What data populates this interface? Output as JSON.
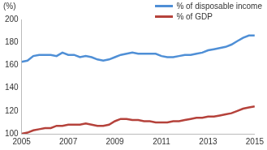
{
  "chart_data": {
    "type": "line",
    "ylabel": "(%)",
    "x": [
      2005,
      2005.25,
      2005.5,
      2005.75,
      2006,
      2006.25,
      2006.5,
      2006.75,
      2007,
      2007.25,
      2007.5,
      2007.75,
      2008,
      2008.25,
      2008.5,
      2008.75,
      2009,
      2009.25,
      2009.5,
      2009.75,
      2010,
      2010.25,
      2010.5,
      2010.75,
      2011,
      2011.25,
      2011.5,
      2011.75,
      2012,
      2012.25,
      2012.5,
      2012.75,
      2013,
      2013.25,
      2013.5,
      2013.75,
      2014,
      2014.25,
      2014.5,
      2014.75,
      2015
    ],
    "series": [
      {
        "name": "% of disposable income",
        "color": "#4f8fd6",
        "values": [
          163,
          164,
          168,
          169,
          169,
          169,
          168,
          171,
          169,
          169,
          167,
          168,
          167,
          165,
          164,
          165,
          167,
          169,
          170,
          171,
          170,
          170,
          170,
          170,
          168,
          167,
          167,
          168,
          169,
          169,
          170,
          171,
          173,
          174,
          175,
          176,
          178,
          181,
          184,
          186,
          186
        ]
      },
      {
        "name": "% of GDP",
        "color": "#b5423b",
        "values": [
          100,
          101,
          103,
          104,
          105,
          105,
          107,
          107,
          108,
          108,
          108,
          109,
          108,
          107,
          107,
          108,
          111,
          113,
          113,
          112,
          112,
          111,
          111,
          110,
          110,
          110,
          111,
          111,
          112,
          113,
          114,
          114,
          115,
          115,
          116,
          117,
          118,
          120,
          122,
          123,
          124
        ]
      }
    ],
    "xlim": [
      2005,
      2015
    ],
    "xticks": [
      2005,
      2007,
      2009,
      2011,
      2013,
      2015
    ],
    "ylim": [
      100,
      200
    ],
    "yticks": [
      100,
      120,
      140,
      160,
      180,
      200
    ],
    "grid": false,
    "legend": "top right"
  }
}
